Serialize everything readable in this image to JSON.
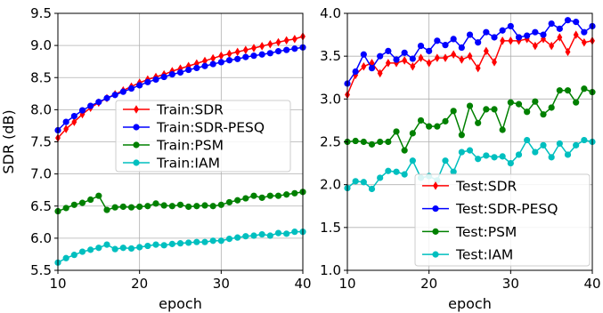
{
  "chart_data": [
    {
      "type": "line",
      "xlabel": "epoch",
      "ylabel": "SDR (dB)",
      "xlim": [
        10,
        40
      ],
      "ylim": [
        5.5,
        9.5
      ],
      "xticks": [
        "10",
        "20",
        "30",
        "40"
      ],
      "yticks": [
        "5.5",
        "6.0",
        "6.5",
        "7.0",
        "7.5",
        "8.0",
        "8.5",
        "9.0",
        "9.5"
      ],
      "grid": true,
      "legend_position": "center-right",
      "x": [
        10,
        11,
        12,
        13,
        14,
        15,
        16,
        17,
        18,
        19,
        20,
        21,
        22,
        23,
        24,
        25,
        26,
        27,
        28,
        29,
        30,
        31,
        32,
        33,
        34,
        35,
        36,
        37,
        38,
        39,
        40
      ],
      "series": [
        {
          "name": "Train:SDR",
          "color": "#ff0000",
          "marker": "thin-diamond",
          "values": [
            7.56,
            7.7,
            7.81,
            7.93,
            8.03,
            8.11,
            8.18,
            8.24,
            8.3,
            8.36,
            8.42,
            8.47,
            8.51,
            8.55,
            8.6,
            8.64,
            8.68,
            8.72,
            8.76,
            8.8,
            8.84,
            8.87,
            8.9,
            8.93,
            8.96,
            8.99,
            9.02,
            9.05,
            9.08,
            9.1,
            9.14
          ]
        },
        {
          "name": "Train:SDR-PESQ",
          "color": "#0000ff",
          "marker": "circle",
          "values": [
            7.68,
            7.81,
            7.9,
            7.99,
            8.06,
            8.12,
            8.18,
            8.23,
            8.28,
            8.33,
            8.38,
            8.43,
            8.47,
            8.51,
            8.55,
            8.58,
            8.62,
            8.65,
            8.68,
            8.71,
            8.74,
            8.77,
            8.79,
            8.82,
            8.84,
            8.86,
            8.88,
            8.91,
            8.93,
            8.95,
            8.97
          ]
        },
        {
          "name": "Train:PSM",
          "color": "#008000",
          "marker": "circle",
          "values": [
            6.42,
            6.47,
            6.52,
            6.55,
            6.6,
            6.66,
            6.44,
            6.48,
            6.49,
            6.48,
            6.49,
            6.5,
            6.54,
            6.51,
            6.5,
            6.52,
            6.49,
            6.5,
            6.51,
            6.5,
            6.52,
            6.56,
            6.59,
            6.62,
            6.66,
            6.63,
            6.66,
            6.66,
            6.68,
            6.7,
            6.72
          ]
        },
        {
          "name": "Train:IAM",
          "color": "#00bfbf",
          "marker": "circle",
          "values": [
            5.62,
            5.69,
            5.74,
            5.79,
            5.82,
            5.85,
            5.9,
            5.83,
            5.85,
            5.84,
            5.86,
            5.88,
            5.9,
            5.89,
            5.91,
            5.92,
            5.93,
            5.94,
            5.94,
            5.96,
            5.96,
            5.99,
            6.01,
            6.03,
            6.04,
            6.06,
            6.04,
            6.08,
            6.07,
            6.1,
            6.1
          ]
        }
      ]
    },
    {
      "type": "line",
      "xlabel": "epoch",
      "ylabel": "",
      "xlim": [
        10,
        40
      ],
      "ylim": [
        1.0,
        4.0
      ],
      "xticks": [
        "10",
        "20",
        "30",
        "40"
      ],
      "yticks": [
        "1.0",
        "1.5",
        "2.0",
        "2.5",
        "3.0",
        "3.5",
        "4.0"
      ],
      "grid": true,
      "legend_position": "lower-center",
      "x": [
        10,
        11,
        12,
        13,
        14,
        15,
        16,
        17,
        18,
        19,
        20,
        21,
        22,
        23,
        24,
        25,
        26,
        27,
        28,
        29,
        30,
        31,
        32,
        33,
        34,
        35,
        36,
        37,
        38,
        39,
        40
      ],
      "series": [
        {
          "name": "Test:SDR",
          "color": "#ff0000",
          "marker": "thin-diamond",
          "values": [
            3.05,
            3.28,
            3.38,
            3.42,
            3.3,
            3.42,
            3.42,
            3.45,
            3.38,
            3.48,
            3.42,
            3.48,
            3.48,
            3.52,
            3.46,
            3.5,
            3.36,
            3.56,
            3.43,
            3.68,
            3.68,
            3.68,
            3.7,
            3.62,
            3.7,
            3.62,
            3.72,
            3.55,
            3.75,
            3.66,
            3.68
          ]
        },
        {
          "name": "Test:SDR-PESQ",
          "color": "#0000ff",
          "marker": "circle",
          "values": [
            3.18,
            3.32,
            3.52,
            3.36,
            3.5,
            3.56,
            3.46,
            3.54,
            3.47,
            3.62,
            3.56,
            3.68,
            3.63,
            3.7,
            3.6,
            3.75,
            3.66,
            3.78,
            3.72,
            3.8,
            3.85,
            3.72,
            3.74,
            3.78,
            3.75,
            3.88,
            3.82,
            3.92,
            3.9,
            3.78,
            3.85
          ]
        },
        {
          "name": "Test:PSM",
          "color": "#008000",
          "marker": "circle",
          "values": [
            2.5,
            2.51,
            2.5,
            2.47,
            2.5,
            2.5,
            2.62,
            2.4,
            2.6,
            2.75,
            2.68,
            2.68,
            2.74,
            2.86,
            2.58,
            2.92,
            2.72,
            2.88,
            2.88,
            2.64,
            2.96,
            2.94,
            2.85,
            2.97,
            2.82,
            2.9,
            3.1,
            3.1,
            2.96,
            3.12,
            3.08
          ]
        },
        {
          "name": "Test:IAM",
          "color": "#00bfbf",
          "marker": "circle",
          "values": [
            1.96,
            2.04,
            2.03,
            1.95,
            2.08,
            2.16,
            2.15,
            2.12,
            2.28,
            2.08,
            2.1,
            2.05,
            2.28,
            2.15,
            2.38,
            2.4,
            2.3,
            2.34,
            2.32,
            2.33,
            2.25,
            2.35,
            2.52,
            2.38,
            2.46,
            2.32,
            2.48,
            2.35,
            2.46,
            2.52,
            2.5
          ]
        }
      ]
    }
  ]
}
